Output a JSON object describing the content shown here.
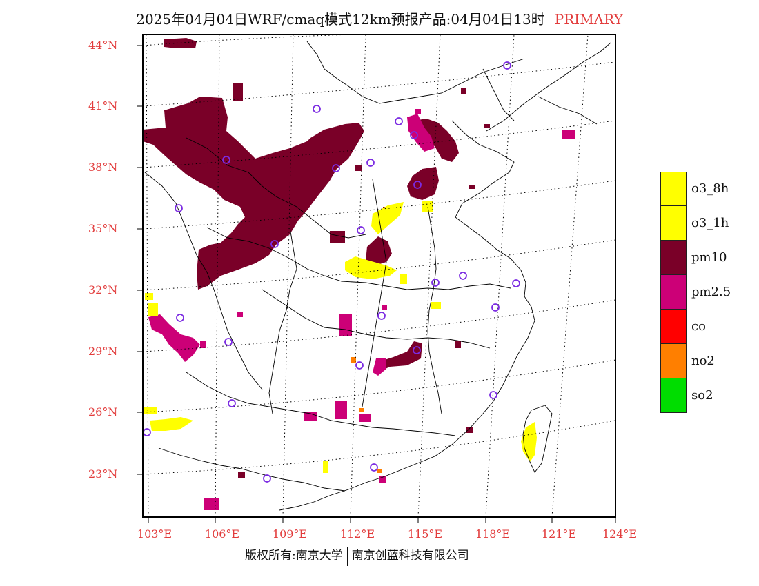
{
  "title": {
    "text": "2025年04月04日WRF/cmaq模式12km预报产品:04月04日13时",
    "tag": "PRIMARY"
  },
  "footer": {
    "left": "版权所有:南京大学",
    "right": "南京创蓝科技有限公司"
  },
  "lat_labels": [
    "44°N",
    "41°N",
    "38°N",
    "35°N",
    "32°N",
    "29°N",
    "26°N",
    "23°N"
  ],
  "lon_labels": [
    "103°E",
    "106°E",
    "109°E",
    "112°E",
    "115°E",
    "118°E",
    "121°E",
    "124°E"
  ],
  "legend": [
    {
      "label": "o3_8h",
      "color": "#ffff00"
    },
    {
      "label": "o3_1h",
      "color": "#ffff00"
    },
    {
      "label": "pm10",
      "color": "#7a0028"
    },
    {
      "label": "pm2.5",
      "color": "#cc0077"
    },
    {
      "label": "co",
      "color": "#ff0000"
    },
    {
      "label": "no2",
      "color": "#ff7f00"
    },
    {
      "label": "so2",
      "color": "#00dd00"
    }
  ],
  "colors": {
    "title_tag": "#e23c3c",
    "axis_labels": "#e23c3c",
    "station_marker": "#7b2be2"
  }
}
